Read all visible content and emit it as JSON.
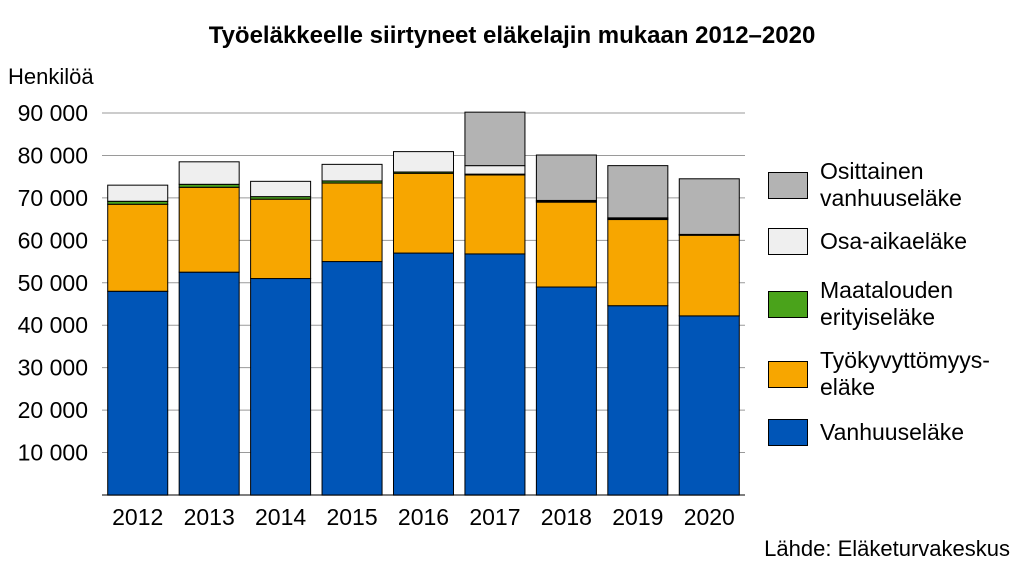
{
  "chart_data": {
    "type": "bar",
    "stacked": true,
    "title": "Työeläkkeelle siirtyneet eläkelajin mukaan 2012–2020",
    "ylabel": "Henkilöä",
    "source": "Lähde: Eläketurvakeskus",
    "ylim": [
      0,
      90000
    ],
    "yticks": [
      "10 000",
      "20 000",
      "30 000",
      "40 000",
      "50 000",
      "60 000",
      "70 000",
      "80 000",
      "90 000"
    ],
    "grid": true,
    "legend_position": "right",
    "categories": [
      "2012",
      "2013",
      "2014",
      "2015",
      "2016",
      "2017",
      "2018",
      "2019",
      "2020"
    ],
    "series": [
      {
        "name": "Vanhuuseläke",
        "color": "#0055b7",
        "values": [
          48000,
          52500,
          51000,
          55000,
          57000,
          56800,
          49000,
          44600,
          42200
        ]
      },
      {
        "name": "Työkyvyttömyys-eläke",
        "color": "#f7a600",
        "values": [
          20500,
          20000,
          18700,
          18500,
          18800,
          18600,
          20000,
          20300,
          19000
        ]
      },
      {
        "name": "Maatalouden erityiseläke",
        "color": "#4aa31b",
        "values": [
          700,
          700,
          600,
          500,
          300,
          200,
          200,
          200,
          100
        ]
      },
      {
        "name": "Osa-aikaeläke",
        "color": "#efefef",
        "values": [
          3800,
          5300,
          3600,
          3900,
          4800,
          2000,
          200,
          200,
          100
        ]
      },
      {
        "name": "Osittainen vanhuuseläke",
        "color": "#b3b3b3",
        "values": [
          0,
          0,
          0,
          0,
          0,
          12600,
          10700,
          12300,
          13100
        ]
      }
    ]
  },
  "legend": [
    {
      "label_1": "Osittainen",
      "label_2": "vanhuuseläke",
      "color": "#b3b3b3"
    },
    {
      "label_1": "Osa-aikaeläke",
      "label_2": "",
      "color": "#efefef"
    },
    {
      "label_1": "Maatalouden",
      "label_2": "erityiseläke",
      "color": "#4aa31b"
    },
    {
      "label_1": "Työkyvyttömyys-",
      "label_2": "eläke",
      "color": "#f7a600"
    },
    {
      "label_1": "Vanhuuseläke",
      "label_2": "",
      "color": "#0055b7"
    }
  ]
}
